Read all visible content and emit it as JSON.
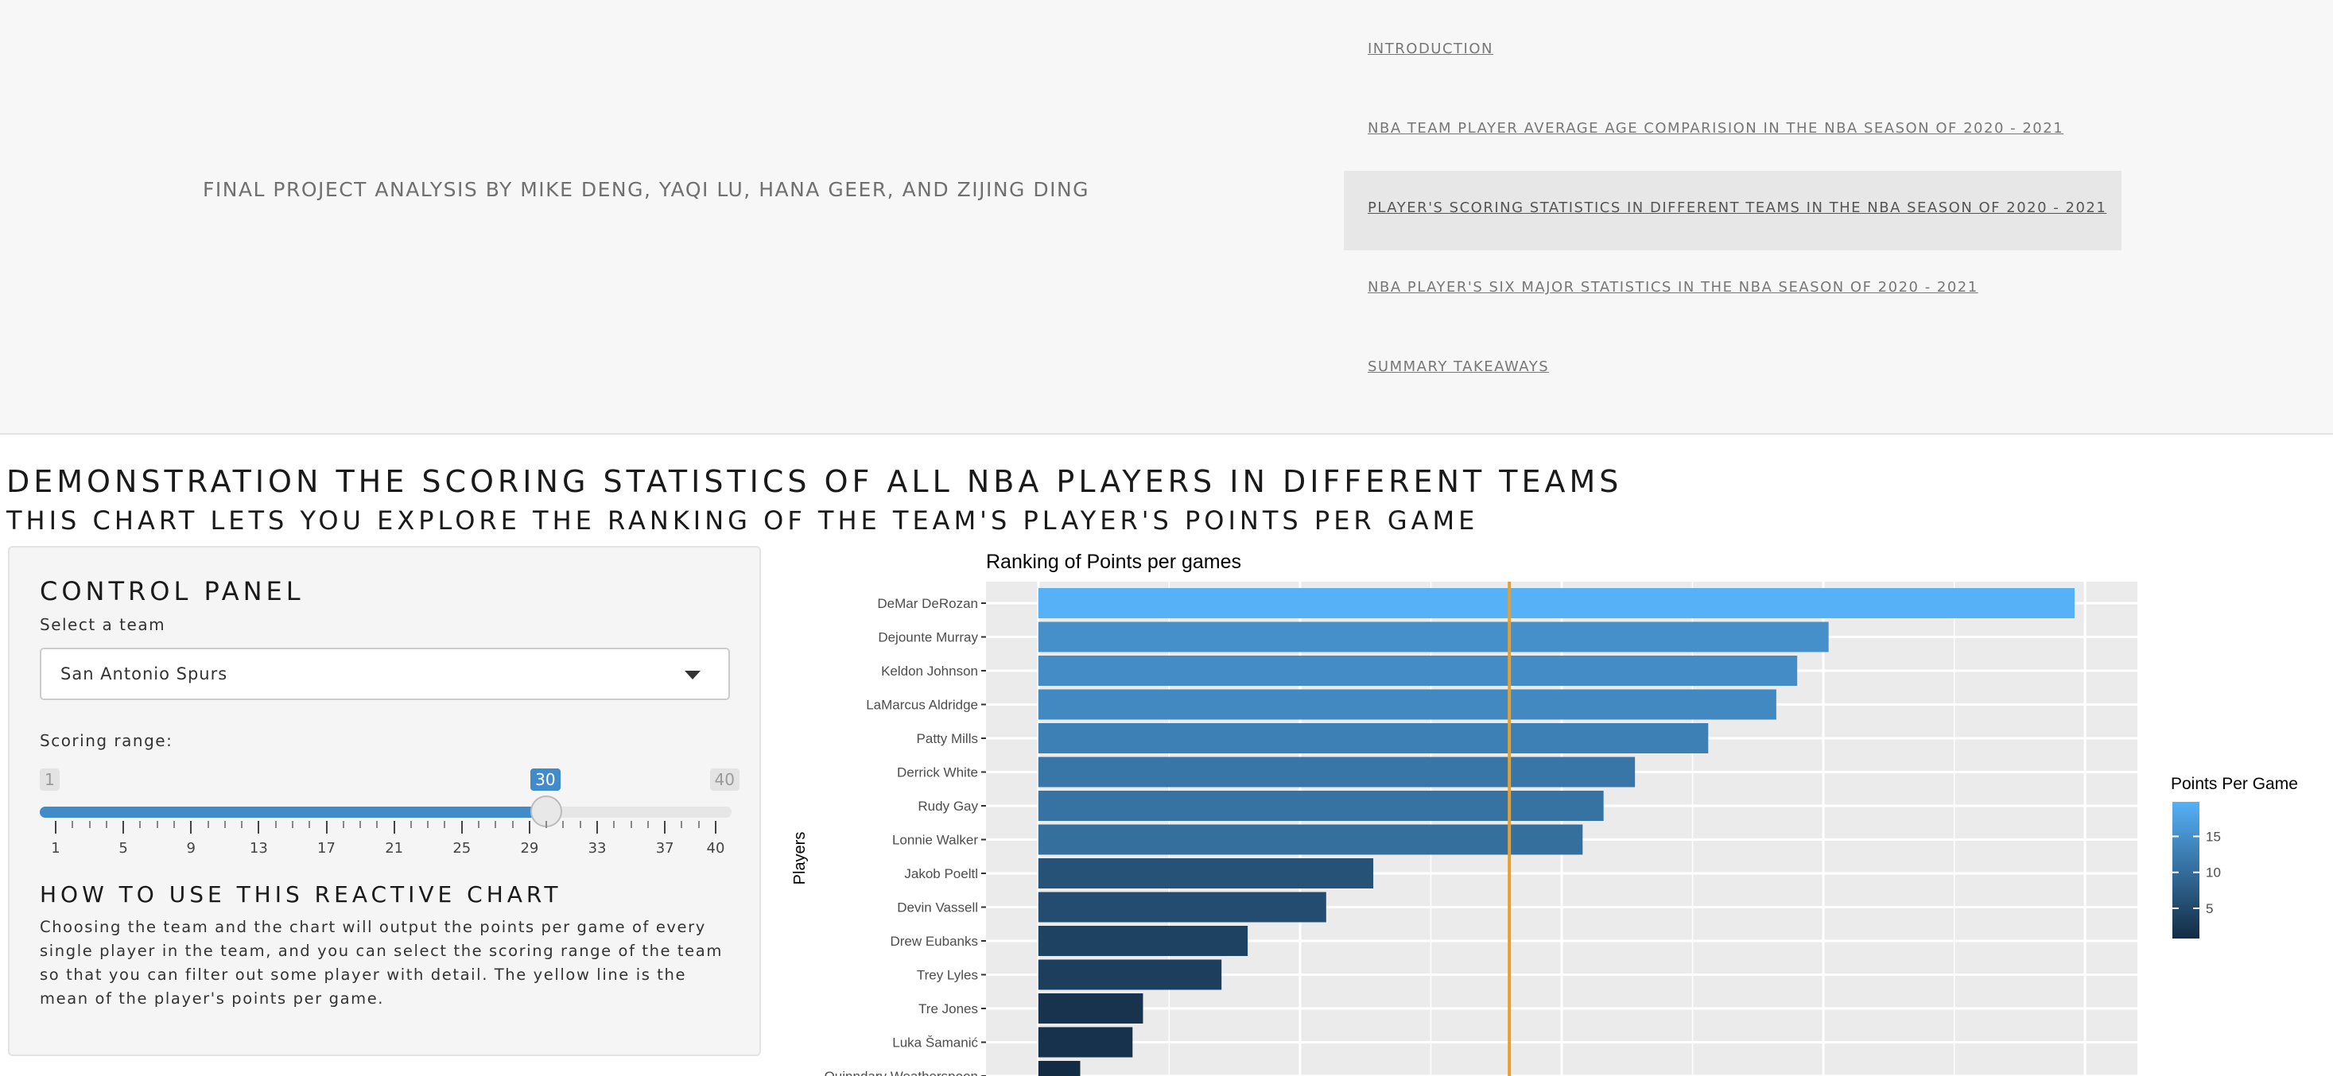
{
  "header": {
    "title": "FINAL PROJECT ANALYSIS BY MIKE DENG, YAQI LU, HANA GEER, AND ZIJING DING",
    "nav": [
      {
        "label": "INTRODUCTION",
        "active": false
      },
      {
        "label": "NBA TEAM PLAYER AVERAGE AGE COMPARISION IN THE NBA SEASON OF 2020 - 2021",
        "active": false
      },
      {
        "label": "PLAYER'S SCORING STATISTICS IN DIFFERENT TEAMS IN THE NBA SEASON OF 2020 - 2021",
        "active": true
      },
      {
        "label": "NBA PLAYER'S SIX MAJOR STATISTICS IN THE NBA SEASON OF 2020 - 2021",
        "active": false
      },
      {
        "label": "SUMMARY TAKEAWAYS",
        "active": false
      }
    ]
  },
  "page": {
    "title": "DEMONSTRATION THE SCORING STATISTICS OF ALL NBA PLAYERS IN DIFFERENT TEAMS",
    "subtitle": "THIS CHART LETS YOU EXPLORE THE RANKING OF THE TEAM'S PLAYER'S POINTS PER GAME"
  },
  "panel": {
    "title": "CONTROL PANEL",
    "team_label": "Select a team",
    "team_value": "San Antonio Spurs",
    "range_label": "Scoring range:",
    "slider": {
      "min": 1,
      "max": 40,
      "value": 30,
      "min_label": "1",
      "max_label": "40",
      "value_label": "30",
      "tick_labels": [
        "1",
        "5",
        "9",
        "13",
        "17",
        "21",
        "25",
        "29",
        "33",
        "37",
        "40"
      ]
    },
    "howto_title": "HOW TO USE THIS REACTIVE CHART",
    "howto_text": "Choosing the team and the chart will output the points per game of every single player in the team, and you can select the scoring range of the team so that you can filter out some player with detail. The yellow line is the mean of the player's points per game."
  },
  "chart_data": {
    "type": "bar",
    "orientation": "horizontal",
    "title": "Ranking of Points per games",
    "ylabel": "Players",
    "legend_title": "Points Per Game",
    "legend_ticks": [
      "15",
      "10",
      "5"
    ],
    "mean_line": 9.0,
    "mean_line_color": "#e8a02a",
    "xlim": [
      -1,
      21
    ],
    "colors": {
      "low": "#132b43",
      "high": "#56b1f7",
      "panel_bg": "#ebebeb",
      "grid": "#ffffff"
    },
    "categories": [
      "DeMar DeRozan",
      "Dejounte Murray",
      "Keldon Johnson",
      "LaMarcus Aldridge",
      "Patty Mills",
      "Derrick White",
      "Rudy Gay",
      "Lonnie Walker",
      "Jakob Poeltl",
      "Devin Vassell",
      "Drew Eubanks",
      "Trey Lyles",
      "Tre Jones",
      "Luka Šamanić",
      "Quinndary Weatherspoon"
    ],
    "values": [
      19.8,
      15.1,
      14.5,
      14.1,
      12.8,
      11.4,
      10.8,
      10.4,
      6.4,
      5.5,
      4.0,
      3.5,
      2.0,
      1.8,
      0.8
    ]
  }
}
